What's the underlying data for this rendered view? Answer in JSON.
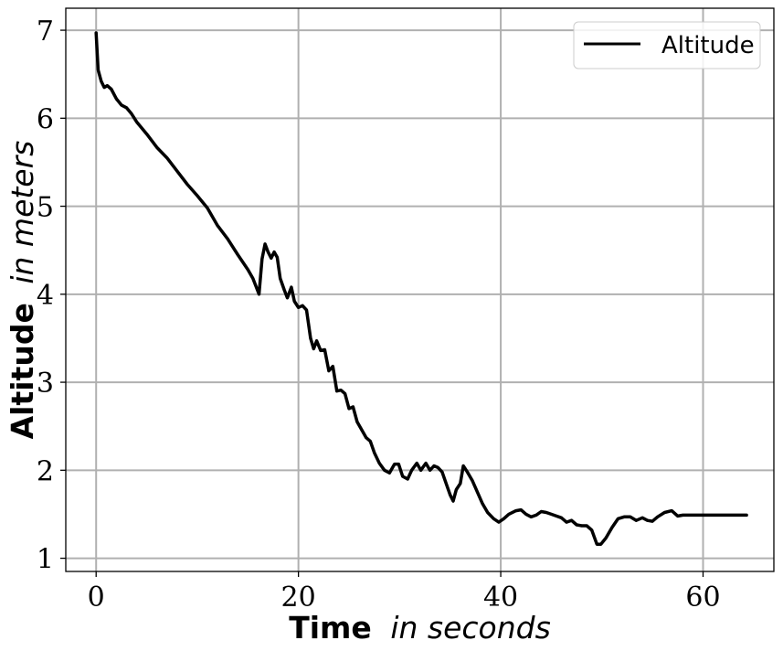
{
  "chart_data": {
    "type": "line",
    "xlabel": {
      "bold": "Time",
      "italic": "in seconds"
    },
    "ylabel": {
      "bold": "Altitude",
      "italic": "in meters"
    },
    "xlim": [
      -3,
      67
    ],
    "ylim": [
      0.85,
      7.25
    ],
    "xticks": [
      0,
      20,
      40,
      60
    ],
    "yticks": [
      1,
      2,
      3,
      4,
      5,
      6,
      7
    ],
    "grid": true,
    "legend_position": "top-right",
    "line_color": "#000000",
    "grid_color": "#b0b0b0",
    "series": [
      {
        "name": "Altitude",
        "points": [
          [
            0.0,
            6.97
          ],
          [
            0.2,
            6.55
          ],
          [
            0.5,
            6.42
          ],
          [
            0.8,
            6.35
          ],
          [
            1.1,
            6.37
          ],
          [
            1.5,
            6.33
          ],
          [
            2.0,
            6.22
          ],
          [
            2.5,
            6.15
          ],
          [
            3.0,
            6.12
          ],
          [
            3.5,
            6.05
          ],
          [
            4.0,
            5.96
          ],
          [
            5.0,
            5.82
          ],
          [
            6.0,
            5.67
          ],
          [
            7.0,
            5.55
          ],
          [
            8.0,
            5.4
          ],
          [
            9.0,
            5.25
          ],
          [
            10.0,
            5.12
          ],
          [
            11.0,
            4.98
          ],
          [
            12.0,
            4.78
          ],
          [
            13.0,
            4.63
          ],
          [
            14.0,
            4.45
          ],
          [
            15.0,
            4.28
          ],
          [
            15.5,
            4.18
          ],
          [
            16.1,
            4.0
          ],
          [
            16.4,
            4.4
          ],
          [
            16.7,
            4.57
          ],
          [
            17.0,
            4.48
          ],
          [
            17.3,
            4.41
          ],
          [
            17.6,
            4.48
          ],
          [
            17.9,
            4.42
          ],
          [
            18.2,
            4.18
          ],
          [
            18.6,
            4.05
          ],
          [
            18.9,
            3.96
          ],
          [
            19.3,
            4.08
          ],
          [
            19.6,
            3.92
          ],
          [
            20.0,
            3.85
          ],
          [
            20.4,
            3.87
          ],
          [
            20.8,
            3.82
          ],
          [
            21.2,
            3.5
          ],
          [
            21.5,
            3.38
          ],
          [
            21.8,
            3.47
          ],
          [
            22.2,
            3.36
          ],
          [
            22.6,
            3.37
          ],
          [
            23.0,
            3.13
          ],
          [
            23.4,
            3.18
          ],
          [
            23.8,
            2.9
          ],
          [
            24.2,
            2.91
          ],
          [
            24.6,
            2.87
          ],
          [
            25.0,
            2.7
          ],
          [
            25.4,
            2.72
          ],
          [
            25.8,
            2.55
          ],
          [
            26.3,
            2.45
          ],
          [
            26.7,
            2.37
          ],
          [
            27.1,
            2.33
          ],
          [
            27.5,
            2.2
          ],
          [
            28.0,
            2.08
          ],
          [
            28.5,
            2.0
          ],
          [
            29.0,
            1.97
          ],
          [
            29.5,
            2.07
          ],
          [
            29.9,
            2.07
          ],
          [
            30.3,
            1.93
          ],
          [
            30.8,
            1.9
          ],
          [
            31.2,
            2.0
          ],
          [
            31.7,
            2.08
          ],
          [
            32.1,
            2.0
          ],
          [
            32.6,
            2.08
          ],
          [
            33.0,
            2.0
          ],
          [
            33.4,
            2.05
          ],
          [
            33.8,
            2.03
          ],
          [
            34.2,
            1.98
          ],
          [
            34.6,
            1.85
          ],
          [
            35.0,
            1.72
          ],
          [
            35.3,
            1.65
          ],
          [
            35.6,
            1.78
          ],
          [
            36.0,
            1.85
          ],
          [
            36.3,
            2.05
          ],
          [
            36.7,
            1.98
          ],
          [
            37.2,
            1.88
          ],
          [
            37.7,
            1.75
          ],
          [
            38.2,
            1.62
          ],
          [
            38.7,
            1.52
          ],
          [
            39.3,
            1.45
          ],
          [
            39.8,
            1.41
          ],
          [
            40.3,
            1.45
          ],
          [
            40.8,
            1.5
          ],
          [
            41.5,
            1.54
          ],
          [
            42.0,
            1.55
          ],
          [
            42.5,
            1.5
          ],
          [
            43.0,
            1.47
          ],
          [
            43.5,
            1.49
          ],
          [
            44.0,
            1.53
          ],
          [
            44.5,
            1.52
          ],
          [
            45.0,
            1.5
          ],
          [
            45.5,
            1.48
          ],
          [
            46.0,
            1.46
          ],
          [
            46.5,
            1.41
          ],
          [
            47.0,
            1.43
          ],
          [
            47.5,
            1.38
          ],
          [
            48.0,
            1.37
          ],
          [
            48.5,
            1.37
          ],
          [
            49.0,
            1.32
          ],
          [
            49.5,
            1.16
          ],
          [
            49.9,
            1.16
          ],
          [
            50.4,
            1.23
          ],
          [
            51.0,
            1.35
          ],
          [
            51.6,
            1.45
          ],
          [
            52.2,
            1.47
          ],
          [
            52.8,
            1.47
          ],
          [
            53.4,
            1.43
          ],
          [
            54.0,
            1.46
          ],
          [
            54.5,
            1.43
          ],
          [
            55.0,
            1.42
          ],
          [
            55.5,
            1.47
          ],
          [
            56.2,
            1.52
          ],
          [
            56.9,
            1.54
          ],
          [
            57.5,
            1.48
          ],
          [
            58.0,
            1.49
          ],
          [
            60.0,
            1.49
          ],
          [
            62.0,
            1.49
          ],
          [
            64.3,
            1.49
          ]
        ]
      }
    ]
  }
}
